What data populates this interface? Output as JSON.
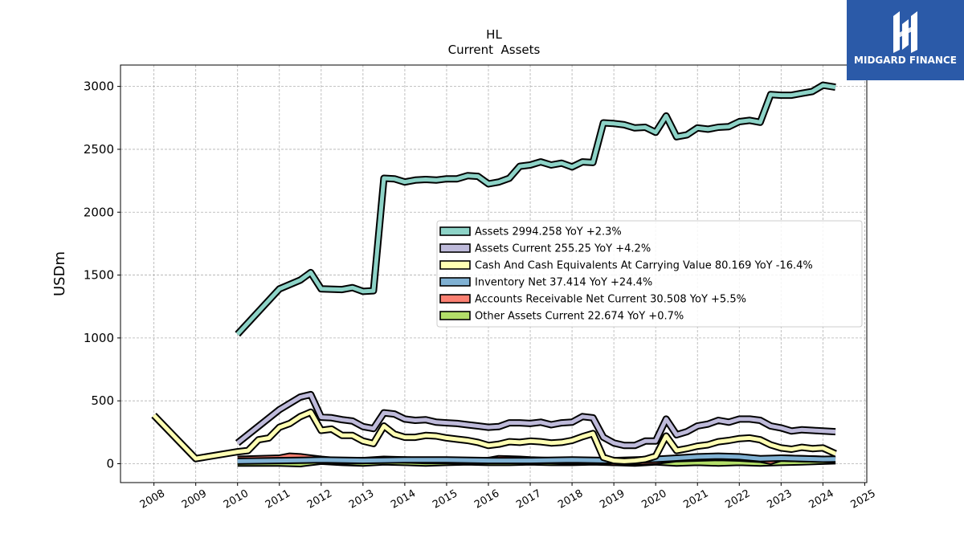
{
  "chart_data": {
    "type": "line",
    "title": "HL",
    "subtitle": "Current  Assets",
    "ylabel": "USDm",
    "xlabel": "",
    "x_ticks": [
      "2008",
      "2009",
      "2010",
      "2011",
      "2012",
      "2013",
      "2014",
      "2015",
      "2016",
      "2017",
      "2018",
      "2019",
      "2020",
      "2021",
      "2022",
      "2023",
      "2024",
      "2025"
    ],
    "y_ticks": [
      "0",
      "500",
      "1000",
      "1500",
      "2000",
      "2500",
      "3000"
    ],
    "xlim": [
      2007.2,
      2025.05
    ],
    "ylim": [
      -150,
      3170
    ],
    "grid": true,
    "legend_position": "center-right",
    "series": [
      {
        "name": "Assets",
        "legend_label": "Assets  2994.258 YoY +2.3%",
        "color": "#8dd3c7",
        "points": [
          [
            2010.0,
            1030
          ],
          [
            2011.0,
            1390
          ],
          [
            2011.5,
            1460
          ],
          [
            2011.75,
            1520
          ],
          [
            2012.0,
            1390
          ],
          [
            2012.5,
            1385
          ],
          [
            2012.75,
            1400
          ],
          [
            2013.0,
            1370
          ],
          [
            2013.25,
            1375
          ],
          [
            2013.5,
            2270
          ],
          [
            2013.75,
            2265
          ],
          [
            2014.0,
            2240
          ],
          [
            2014.25,
            2255
          ],
          [
            2014.5,
            2260
          ],
          [
            2014.75,
            2255
          ],
          [
            2015.0,
            2265
          ],
          [
            2015.25,
            2265
          ],
          [
            2015.5,
            2290
          ],
          [
            2015.75,
            2285
          ],
          [
            2016.0,
            2225
          ],
          [
            2016.25,
            2240
          ],
          [
            2016.5,
            2270
          ],
          [
            2016.75,
            2365
          ],
          [
            2017.0,
            2375
          ],
          [
            2017.25,
            2400
          ],
          [
            2017.5,
            2375
          ],
          [
            2017.75,
            2390
          ],
          [
            2018.0,
            2360
          ],
          [
            2018.25,
            2400
          ],
          [
            2018.5,
            2395
          ],
          [
            2018.75,
            2710
          ],
          [
            2019.0,
            2705
          ],
          [
            2019.25,
            2695
          ],
          [
            2019.5,
            2670
          ],
          [
            2019.75,
            2675
          ],
          [
            2020.0,
            2635
          ],
          [
            2020.25,
            2765
          ],
          [
            2020.5,
            2600
          ],
          [
            2020.75,
            2615
          ],
          [
            2021.0,
            2670
          ],
          [
            2021.25,
            2660
          ],
          [
            2021.5,
            2675
          ],
          [
            2021.75,
            2680
          ],
          [
            2022.0,
            2720
          ],
          [
            2022.25,
            2730
          ],
          [
            2022.5,
            2715
          ],
          [
            2022.75,
            2935
          ],
          [
            2023.0,
            2930
          ],
          [
            2023.25,
            2930
          ],
          [
            2023.5,
            2945
          ],
          [
            2023.75,
            2960
          ],
          [
            2024.0,
            3010
          ],
          [
            2024.3,
            2994
          ]
        ]
      },
      {
        "name": "Assets Current",
        "legend_label": "Assets Current  255.25 YoY +4.2%",
        "color": "#bebada",
        "points": [
          [
            2010.0,
            165
          ],
          [
            2011.0,
            430
          ],
          [
            2011.5,
            530
          ],
          [
            2011.75,
            550
          ],
          [
            2012.0,
            370
          ],
          [
            2012.25,
            365
          ],
          [
            2012.5,
            350
          ],
          [
            2012.75,
            340
          ],
          [
            2013.0,
            295
          ],
          [
            2013.25,
            280
          ],
          [
            2013.5,
            405
          ],
          [
            2013.75,
            395
          ],
          [
            2014.0,
            355
          ],
          [
            2014.25,
            345
          ],
          [
            2014.5,
            350
          ],
          [
            2014.75,
            330
          ],
          [
            2015.0,
            325
          ],
          [
            2015.25,
            320
          ],
          [
            2015.5,
            310
          ],
          [
            2015.75,
            300
          ],
          [
            2016.0,
            290
          ],
          [
            2016.25,
            295
          ],
          [
            2016.5,
            325
          ],
          [
            2016.75,
            325
          ],
          [
            2017.0,
            320
          ],
          [
            2017.25,
            330
          ],
          [
            2017.5,
            310
          ],
          [
            2017.75,
            325
          ],
          [
            2018.0,
            330
          ],
          [
            2018.25,
            375
          ],
          [
            2018.5,
            365
          ],
          [
            2018.75,
            210
          ],
          [
            2019.0,
            165
          ],
          [
            2019.25,
            145
          ],
          [
            2019.5,
            145
          ],
          [
            2019.75,
            180
          ],
          [
            2020.0,
            180
          ],
          [
            2020.25,
            355
          ],
          [
            2020.5,
            230
          ],
          [
            2020.75,
            255
          ],
          [
            2021.0,
            300
          ],
          [
            2021.25,
            315
          ],
          [
            2021.5,
            345
          ],
          [
            2021.75,
            330
          ],
          [
            2022.0,
            355
          ],
          [
            2022.25,
            355
          ],
          [
            2022.5,
            345
          ],
          [
            2022.75,
            300
          ],
          [
            2023.0,
            285
          ],
          [
            2023.25,
            260
          ],
          [
            2023.5,
            270
          ],
          [
            2023.75,
            265
          ],
          [
            2024.0,
            260
          ],
          [
            2024.3,
            255
          ]
        ]
      },
      {
        "name": "Cash And Cash Equivalents At Carrying Value",
        "legend_label": "Cash And Cash Equivalents At Carrying Value  80.169 YoY -16.4%",
        "color": "#ffffb3",
        "points": [
          [
            2008.0,
            385
          ],
          [
            2009.0,
            40
          ],
          [
            2010.0,
            95
          ],
          [
            2010.25,
            105
          ],
          [
            2010.5,
            190
          ],
          [
            2010.75,
            205
          ],
          [
            2011.0,
            290
          ],
          [
            2011.25,
            320
          ],
          [
            2011.5,
            375
          ],
          [
            2011.75,
            410
          ],
          [
            2012.0,
            265
          ],
          [
            2012.25,
            275
          ],
          [
            2012.5,
            225
          ],
          [
            2012.75,
            225
          ],
          [
            2013.0,
            180
          ],
          [
            2013.25,
            160
          ],
          [
            2013.5,
            300
          ],
          [
            2013.75,
            235
          ],
          [
            2014.0,
            210
          ],
          [
            2014.25,
            210
          ],
          [
            2014.5,
            225
          ],
          [
            2014.75,
            220
          ],
          [
            2015.0,
            205
          ],
          [
            2015.25,
            195
          ],
          [
            2015.5,
            185
          ],
          [
            2015.75,
            170
          ],
          [
            2016.0,
            145
          ],
          [
            2016.25,
            155
          ],
          [
            2016.5,
            175
          ],
          [
            2016.75,
            170
          ],
          [
            2017.0,
            180
          ],
          [
            2017.25,
            175
          ],
          [
            2017.5,
            165
          ],
          [
            2017.75,
            170
          ],
          [
            2018.0,
            185
          ],
          [
            2018.25,
            215
          ],
          [
            2018.5,
            240
          ],
          [
            2018.75,
            50
          ],
          [
            2019.0,
            25
          ],
          [
            2019.25,
            20
          ],
          [
            2019.5,
            25
          ],
          [
            2019.75,
            35
          ],
          [
            2020.0,
            60
          ],
          [
            2020.25,
            220
          ],
          [
            2020.5,
            105
          ],
          [
            2020.75,
            120
          ],
          [
            2021.0,
            140
          ],
          [
            2021.25,
            150
          ],
          [
            2021.5,
            175
          ],
          [
            2021.75,
            185
          ],
          [
            2022.0,
            200
          ],
          [
            2022.25,
            205
          ],
          [
            2022.5,
            190
          ],
          [
            2022.75,
            150
          ],
          [
            2023.0,
            125
          ],
          [
            2023.25,
            115
          ],
          [
            2023.5,
            130
          ],
          [
            2023.75,
            120
          ],
          [
            2024.0,
            125
          ],
          [
            2024.3,
            80
          ]
        ]
      },
      {
        "name": "Inventory Net",
        "legend_label": "Inventory Net  37.414 YoY +24.4%",
        "color": "#80b1d3",
        "points": [
          [
            2010.0,
            20
          ],
          [
            2011.0,
            25
          ],
          [
            2012.0,
            30
          ],
          [
            2013.0,
            25
          ],
          [
            2014.0,
            30
          ],
          [
            2015.0,
            30
          ],
          [
            2016.0,
            25
          ],
          [
            2017.0,
            25
          ],
          [
            2018.0,
            30
          ],
          [
            2019.0,
            25
          ],
          [
            2020.0,
            35
          ],
          [
            2020.5,
            45
          ],
          [
            2021.0,
            55
          ],
          [
            2021.5,
            60
          ],
          [
            2022.0,
            55
          ],
          [
            2022.5,
            40
          ],
          [
            2023.0,
            45
          ],
          [
            2023.5,
            40
          ],
          [
            2024.0,
            35
          ],
          [
            2024.3,
            37
          ]
        ]
      },
      {
        "name": "Accounts Receivable Net Current",
        "legend_label": "Accounts Receivable Net Current  30.508 YoY +5.5%",
        "color": "#fb8072",
        "points": [
          [
            2010.0,
            35
          ],
          [
            2010.5,
            40
          ],
          [
            2011.0,
            45
          ],
          [
            2011.25,
            60
          ],
          [
            2011.5,
            55
          ],
          [
            2012.0,
            35
          ],
          [
            2012.5,
            20
          ],
          [
            2013.0,
            25
          ],
          [
            2013.5,
            35
          ],
          [
            2014.0,
            30
          ],
          [
            2014.5,
            25
          ],
          [
            2015.0,
            25
          ],
          [
            2015.5,
            20
          ],
          [
            2016.0,
            25
          ],
          [
            2016.25,
            40
          ],
          [
            2016.75,
            35
          ],
          [
            2017.0,
            30
          ],
          [
            2017.5,
            25
          ],
          [
            2018.0,
            20
          ],
          [
            2018.5,
            25
          ],
          [
            2019.0,
            10
          ],
          [
            2019.5,
            15
          ],
          [
            2020.0,
            20
          ],
          [
            2020.5,
            40
          ],
          [
            2021.0,
            45
          ],
          [
            2021.5,
            50
          ],
          [
            2022.0,
            45
          ],
          [
            2022.5,
            35
          ],
          [
            2022.75,
            20
          ],
          [
            2023.0,
            45
          ],
          [
            2023.5,
            40
          ],
          [
            2024.0,
            35
          ],
          [
            2024.3,
            30
          ]
        ]
      },
      {
        "name": "Other Assets Current",
        "legend_label": "Other Assets Current  22.674 YoY +0.7%",
        "color": "#b3de69",
        "points": [
          [
            2010.0,
            5
          ],
          [
            2011.0,
            5
          ],
          [
            2011.5,
            0
          ],
          [
            2012.0,
            20
          ],
          [
            2012.5,
            10
          ],
          [
            2013.0,
            5
          ],
          [
            2013.5,
            15
          ],
          [
            2014.0,
            10
          ],
          [
            2014.5,
            5
          ],
          [
            2015.0,
            10
          ],
          [
            2015.5,
            15
          ],
          [
            2016.0,
            10
          ],
          [
            2016.5,
            10
          ],
          [
            2017.0,
            15
          ],
          [
            2017.5,
            10
          ],
          [
            2018.0,
            10
          ],
          [
            2018.5,
            15
          ],
          [
            2019.0,
            10
          ],
          [
            2019.5,
            5
          ],
          [
            2020.0,
            15
          ],
          [
            2020.5,
            5
          ],
          [
            2021.0,
            10
          ],
          [
            2021.5,
            5
          ],
          [
            2022.0,
            10
          ],
          [
            2022.5,
            5
          ],
          [
            2023.0,
            10
          ],
          [
            2023.5,
            15
          ],
          [
            2024.0,
            20
          ],
          [
            2024.3,
            23
          ]
        ]
      }
    ]
  },
  "logo": {
    "text": "MIDGARD FINANCE",
    "bg_color": "#2b5aa8"
  }
}
